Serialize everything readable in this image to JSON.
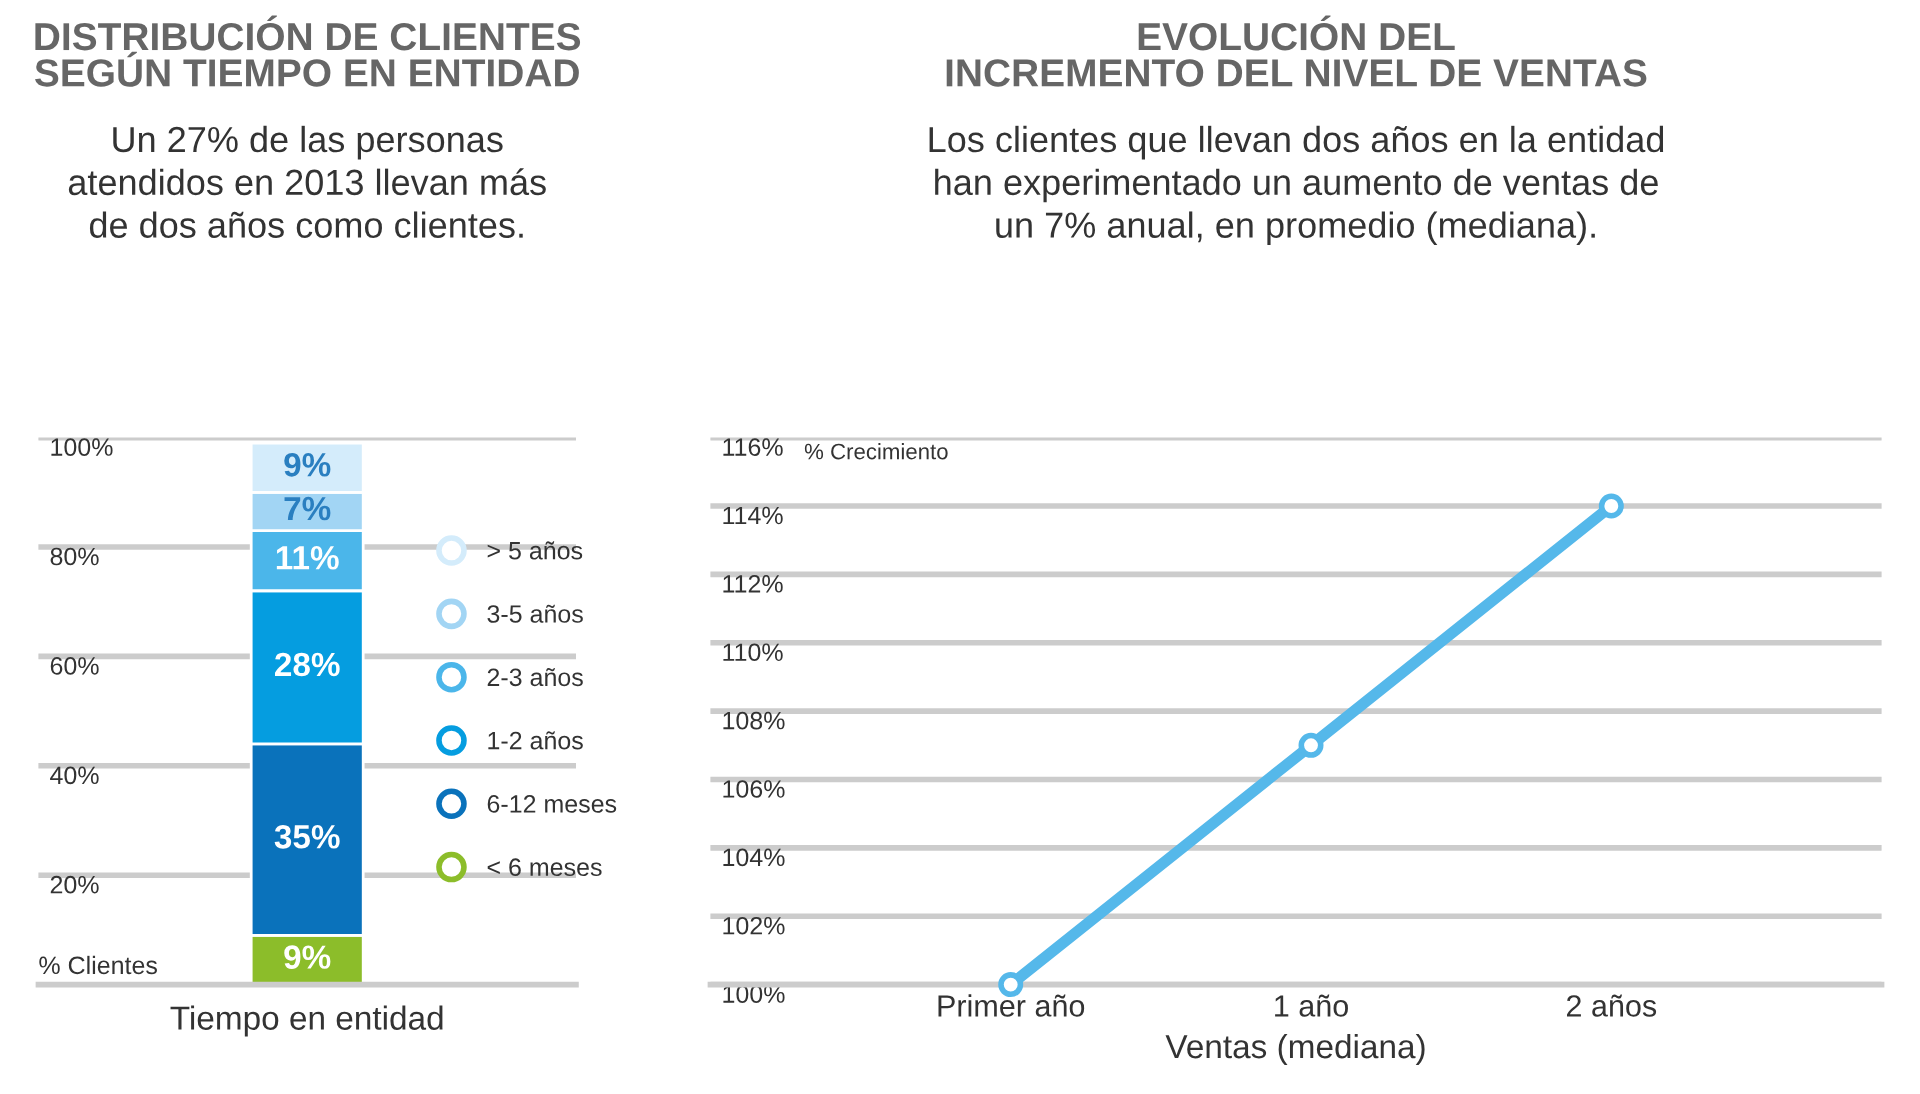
{
  "chart_data": [
    {
      "type": "bar",
      "title": "DISTRIBUCIÓN DE CLIENTES\nSEGÚN TIEMPO EN ENTIDAD",
      "subtitle": "Un 27% de las personas\natendidos en 2013 llevan más\nde dos años como clientes.",
      "xlabel": "Tiempo en entidad",
      "ylabel": "% Clientes",
      "categories": [
        null
      ],
      "stacked": true,
      "series": [
        {
          "name": "< 6 meses",
          "color": "#8cbd2a",
          "values": [
            9
          ],
          "value_labels": [
            "9%"
          ]
        },
        {
          "name": "6-12 meses",
          "color": "#0a72bb",
          "values": [
            35
          ],
          "value_labels": [
            "35%"
          ]
        },
        {
          "name": "1-2 años",
          "color": "#059de0",
          "values": [
            28
          ],
          "value_labels": [
            "28%"
          ]
        },
        {
          "name": "2-3 años",
          "color": "#4bb6ea",
          "values": [
            11
          ],
          "value_labels": [
            "11%"
          ]
        },
        {
          "name": "3-5 años",
          "color": "#a2d5f4",
          "values": [
            7
          ],
          "value_labels": [
            "7%"
          ]
        },
        {
          "name": "> 5 años",
          "color": "#d4ecfb",
          "values": [
            9
          ],
          "value_labels": [
            "9%"
          ]
        }
      ],
      "ylim": [
        0,
        100
      ],
      "yticks": [
        {
          "value": 20,
          "label": "20%"
        },
        {
          "value": 40,
          "label": "40%"
        },
        {
          "value": 60,
          "label": "60%"
        },
        {
          "value": 80,
          "label": "80%"
        },
        {
          "value": 100,
          "label": "100%"
        }
      ],
      "grid": "y",
      "legend": "right"
    },
    {
      "type": "line",
      "title": "EVOLUCIÓN DEL\nINCREMENTO DEL NIVEL DE VENTAS",
      "subtitle": "Los clientes que llevan dos años en la entidad\nhan experimentado un aumento de ventas de\nun 7% anual, en promedio (mediana).",
      "xlabel": "Ventas (mediana)",
      "ylabel": "% Crecimiento",
      "categories": [
        "Primer año",
        "1 año",
        "2 años"
      ],
      "series": [
        {
          "color": "#55b8ea",
          "values": [
            100,
            107,
            114
          ]
        }
      ],
      "ylim": [
        100,
        116
      ],
      "yticks": [
        {
          "value": 100,
          "label": "100%"
        },
        {
          "value": 102,
          "label": "102%"
        },
        {
          "value": 104,
          "label": "104%"
        },
        {
          "value": 106,
          "label": "106%"
        },
        {
          "value": 108,
          "label": "108%"
        },
        {
          "value": 110,
          "label": "110%"
        },
        {
          "value": 112,
          "label": "112%"
        },
        {
          "value": 114,
          "label": "114%"
        },
        {
          "value": 116,
          "label": "116%"
        }
      ],
      "grid": "y",
      "marker": "circle",
      "line_style": "solid"
    }
  ]
}
